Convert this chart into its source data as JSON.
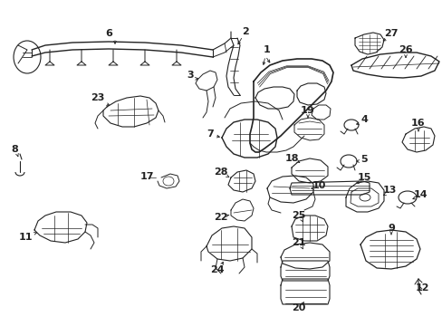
{
  "background_color": "#ffffff",
  "line_color": "#222222",
  "fig_width": 4.89,
  "fig_height": 3.6,
  "dpi": 100
}
